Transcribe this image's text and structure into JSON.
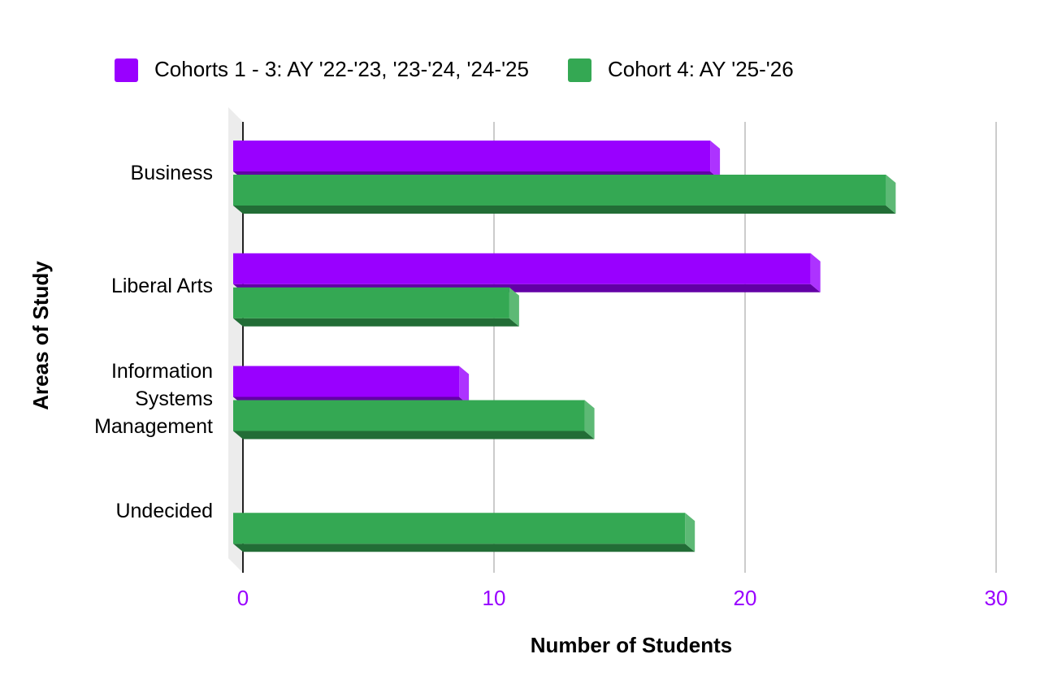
{
  "chart_data": {
    "type": "bar",
    "orientation": "horizontal",
    "categories": [
      "Business",
      "Liberal Arts",
      "Information Systems Management",
      "Undecided"
    ],
    "series": [
      {
        "name": "Cohorts 1 - 3: AY '22-'23, '23-'24, '24-'25",
        "color": "#9900ff",
        "values": [
          19,
          23,
          9,
          null
        ]
      },
      {
        "name": "Cohort 4: AY '25-'26",
        "color": "#34a853",
        "values": [
          26,
          11,
          14,
          18
        ]
      }
    ],
    "x_label": "Number of Students",
    "y_label": "Areas of Study",
    "xlim": [
      0,
      30
    ],
    "xticks": [
      0,
      10,
      20,
      30
    ],
    "tick_color": "#9900ff",
    "grid": true,
    "legend": "top"
  }
}
